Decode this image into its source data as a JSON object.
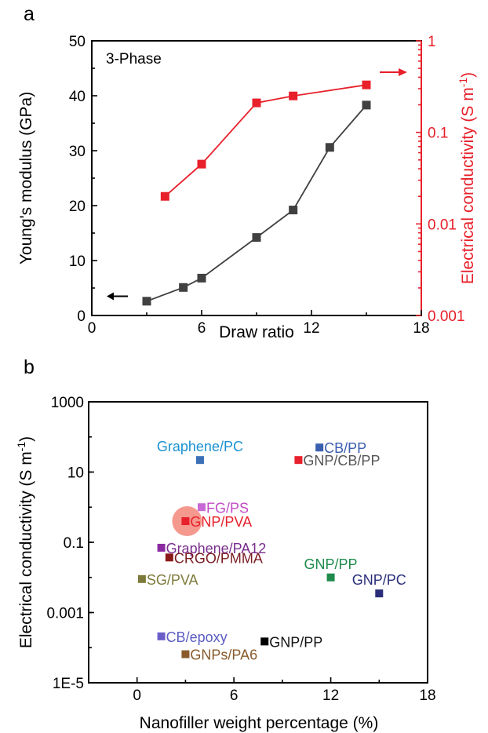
{
  "panel_a_label": "a",
  "panel_b_label": "b",
  "chart_data": [
    {
      "type": "line",
      "annotation": "3-Phase",
      "xlabel": "Draw ratio",
      "ylabel_left": "Young's modulus (GPa)",
      "ylabel_right": "Electrical conductivity (S m",
      "ylabel_right_sup": "-1",
      "ylabel_right_close": ")",
      "xlim": [
        0,
        18
      ],
      "ylim_left": [
        0,
        50
      ],
      "ylim_right": [
        0.001,
        1
      ],
      "right_axis_scale": "log",
      "x_ticks": [
        "0",
        "6",
        "12",
        "18"
      ],
      "y_left_ticks": [
        "0",
        "10",
        "20",
        "30",
        "40",
        "50"
      ],
      "y_right_ticks": [
        "0.001",
        "0.01",
        "0.1",
        "1"
      ],
      "series": [
        {
          "axis": "left",
          "color": "#404040",
          "marker": "square",
          "x": [
            3,
            5,
            6,
            9,
            11,
            13,
            15
          ],
          "y": [
            2.6,
            5.1,
            6.8,
            14.2,
            19.2,
            30.6,
            38.3
          ]
        },
        {
          "axis": "right",
          "color": "#e8202b",
          "marker": "square",
          "x": [
            4,
            6,
            9,
            11,
            15
          ],
          "y": [
            0.02,
            0.045,
            0.21,
            0.25,
            0.33
          ]
        }
      ],
      "axis_arrows": [
        {
          "points_to": "left",
          "color": "#000000"
        },
        {
          "points_to": "right",
          "color": "#e8202b"
        }
      ]
    },
    {
      "type": "scatter",
      "xlabel": "Nanofiller weight percentage (%)",
      "ylabel": "Electrical conductivity (S m",
      "ylabel_sup": "-1",
      "ylabel_close": ")",
      "xlim": [
        -3,
        18
      ],
      "ylim": [
        1e-05,
        1000
      ],
      "y_scale": "log",
      "x_ticks": [
        "0",
        "6",
        "12",
        "18"
      ],
      "y_ticks": [
        "1E-5",
        "0.001",
        "0.1",
        "10",
        "1000"
      ],
      "points": [
        {
          "label": "Graphene/PC",
          "x": 3.9,
          "y": 22,
          "color": "#1a92d1",
          "marker_color": "#3b6fb6",
          "label_side": "above"
        },
        {
          "label": "CB/PP",
          "x": 11.3,
          "y": 50,
          "color": "#3b5fb0",
          "marker_color": "#3b5fb0",
          "label_side": "right"
        },
        {
          "label": "GNP/CB/PP",
          "x": 10.0,
          "y": 22,
          "color": "#555555",
          "marker_color": "#e8202b",
          "label_side": "right"
        },
        {
          "label": "FG/PS",
          "x": 4.0,
          "y": 1.0,
          "color": "#c14bc4",
          "marker_color": "#c86ad6",
          "label_side": "right"
        },
        {
          "label": "GNP/PVA",
          "x": 3.0,
          "y": 0.4,
          "color": "#e8202b",
          "marker_color": "#e8202b",
          "label_side": "right",
          "highlight": true
        },
        {
          "label": "Graphene/PA12",
          "x": 1.5,
          "y": 0.07,
          "color": "#7a2d8f",
          "marker_color": "#8a2aa0",
          "label_side": "right"
        },
        {
          "label": "CRGO/PMMA",
          "x": 2.0,
          "y": 0.037,
          "color": "#7a1c22",
          "marker_color": "#8b1a1a",
          "label_side": "right"
        },
        {
          "label": "SG/PVA",
          "x": 0.3,
          "y": 0.009,
          "color": "#7d7a3a",
          "marker_color": "#7d7a3a",
          "label_side": "right"
        },
        {
          "label": "GNP/PP",
          "x": 12.0,
          "y": 0.01,
          "color": "#1f8a4c",
          "marker_color": "#1f8a4c",
          "label_side": "above"
        },
        {
          "label": "GNP/PC",
          "x": 15.0,
          "y": 0.0035,
          "color": "#2a2e7a",
          "marker_color": "#2a2e7a",
          "label_side": "above"
        },
        {
          "label": "CB/epoxy",
          "x": 1.5,
          "y": 0.00021,
          "color": "#5b5cc4",
          "marker_color": "#6a5ec8",
          "label_side": "right"
        },
        {
          "label": "GNP/PP",
          "x": 7.9,
          "y": 0.00015,
          "color": "#111111",
          "marker_color": "#000000",
          "label_side": "right"
        },
        {
          "label": "GNPs/PA6",
          "x": 3.0,
          "y": 6.5e-05,
          "color": "#8a5a2b",
          "marker_color": "#8a5a2b",
          "label_side": "right"
        }
      ]
    }
  ]
}
